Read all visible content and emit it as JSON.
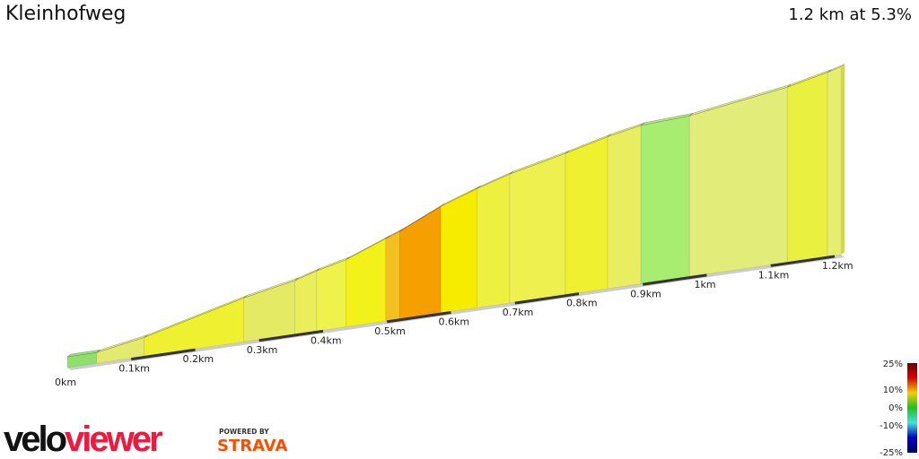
{
  "header": {
    "title": "Kleinhofweg",
    "summary": "1.2 km at 5.3%"
  },
  "chart_data": {
    "type": "area",
    "title": "Kleinhofweg",
    "distance_km": [
      0,
      0.046,
      0.12,
      0.276,
      0.356,
      0.39,
      0.436,
      0.498,
      0.52,
      0.584,
      0.641,
      0.692,
      0.779,
      0.845,
      0.897,
      0.973,
      1.126,
      1.189,
      1.21
    ],
    "elevation_gain_m": [
      0,
      0,
      2.9,
      11.9,
      15.5,
      17.8,
      20.3,
      25.8,
      27.7,
      34.5,
      39,
      42.5,
      47,
      50.8,
      53.1,
      54,
      59.2,
      62.4,
      63.7
    ],
    "segment_colors": [
      "#8ee06a",
      "#e4ea6e",
      "#eef030",
      "#e4ea64",
      "#eaee5a",
      "#eef24a",
      "#f2f21a",
      "#f2c020",
      "#f59f00",
      "#f5ec00",
      "#eef040",
      "#eef050",
      "#eff030",
      "#e8ee60",
      "#a8ec70",
      "#e2ec78",
      "#eaf040",
      "#e6ee70"
    ],
    "x_ticks": [
      "0km",
      "0.1km",
      "0.2km",
      "0.3km",
      "0.4km",
      "0.5km",
      "0.6km",
      "0.7km",
      "0.8km",
      "0.9km",
      "1km",
      "1.1km",
      "1.2km"
    ],
    "x_range_km": [
      0,
      1.2
    ],
    "legend": {
      "title": "",
      "labels": [
        "25%",
        "10%",
        "0%",
        "-10%",
        "-25%"
      ],
      "placement": "bottom-right",
      "colors": [
        "#6a0000",
        "#e00000",
        "#f0d000",
        "#20c020",
        "#40e0e0",
        "#0000c0",
        "#000060"
      ]
    }
  },
  "logo": {
    "brand": "veloviewer",
    "powered": "POWERED BY",
    "partner": "STRAVA"
  }
}
